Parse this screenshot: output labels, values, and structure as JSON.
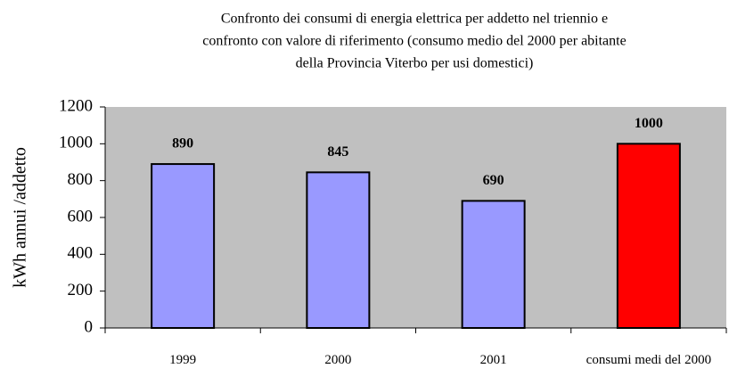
{
  "chart_data": {
    "type": "bar",
    "title": [
      "Confronto dei consumi di energia elettrica per addetto nel triennio e",
      "confronto con valore di riferimento (consumo medio del 2000 per abitante",
      "della Provincia Viterbo per usi domestici)"
    ],
    "y_label": "kWh annui /addetto",
    "categories": [
      "1999",
      "2000",
      "2001",
      "consumi medi del 2000"
    ],
    "values": [
      890,
      845,
      690,
      1000
    ],
    "colors": [
      "#9999ff",
      "#9999ff",
      "#9999ff",
      "#ff0000"
    ],
    "background": "#c0c0c0",
    "ylim": [
      0,
      1200
    ],
    "yticks": [
      0,
      200,
      400,
      600,
      800,
      1000,
      1200
    ],
    "grid": false
  }
}
